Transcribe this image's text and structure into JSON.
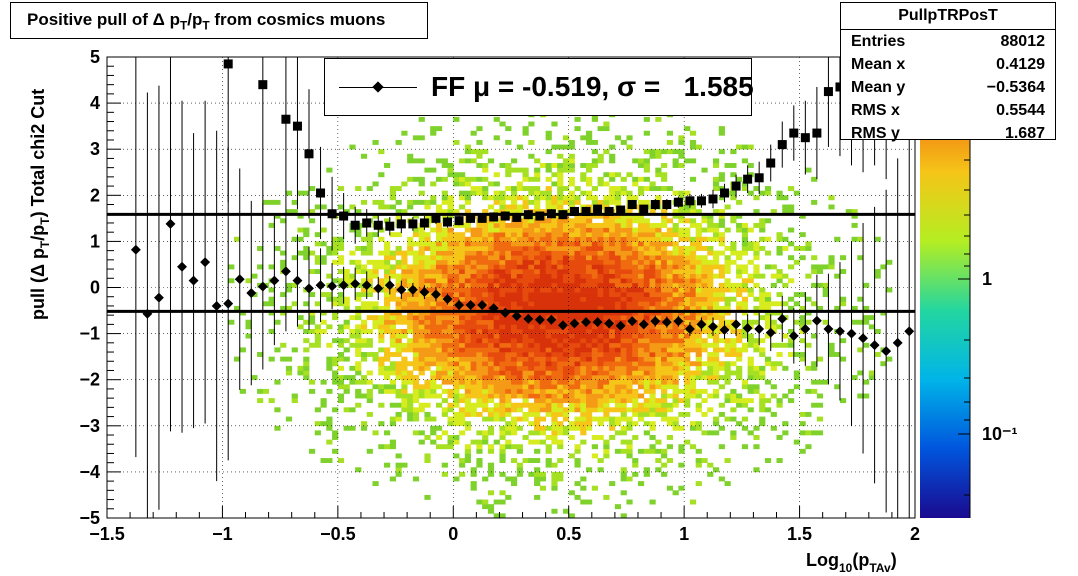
{
  "title": {
    "prefix": "Positive pull of Δ p",
    "sub1": "T",
    "mid": "/p",
    "sub2": "T",
    "suffix": " from cosmics muons"
  },
  "stats": {
    "name": "PullpTRPosT",
    "rows": [
      {
        "label": "Entries",
        "value": "88012"
      },
      {
        "label": "Mean x",
        "value": "0.4129"
      },
      {
        "label": "Mean y",
        "value": "−0.5364"
      },
      {
        "label": "RMS x",
        "value": "0.5544"
      },
      {
        "label": "RMS y",
        "value": "1.687"
      }
    ]
  },
  "legend": {
    "text": "FF μ = -0.519, σ =   1.585"
  },
  "colors": {
    "marker": "#000000",
    "fit_line": "#000000"
  },
  "chart_data": {
    "type": "scatter",
    "xlabel": "Log10(pTAv)",
    "ylabel": "pull (Δ pT/pT)  Total chi2 Cut",
    "xlim": [
      -1.5,
      2
    ],
    "ylim": [
      -5,
      5
    ],
    "x_ticks": [
      "−1.5",
      "−1",
      "−0.5",
      "0",
      "0.5",
      "1",
      "1.5",
      "2"
    ],
    "y_ticks": [
      "−5",
      "−4",
      "−3",
      "−2",
      "−1",
      "0",
      "1",
      "2",
      "3",
      "4",
      "5"
    ],
    "colorbar_ticks": [
      "1",
      "10⁻¹"
    ],
    "grid": true,
    "fit_lines": [
      -0.519,
      1.585
    ],
    "series": [
      {
        "marker": "diamond",
        "x": [
          -1.375,
          -1.325,
          -1.275,
          -1.225,
          -1.175,
          -1.125,
          -1.075,
          -1.025,
          -0.975,
          -0.925,
          -0.875,
          -0.825,
          -0.775,
          -0.725,
          -0.675,
          -0.625,
          -0.575,
          -0.525,
          -0.475,
          -0.425,
          -0.375,
          -0.325,
          -0.275,
          -0.225,
          -0.175,
          -0.125,
          -0.075,
          -0.025,
          0.025,
          0.075,
          0.125,
          0.175,
          0.225,
          0.275,
          0.325,
          0.375,
          0.425,
          0.475,
          0.525,
          0.575,
          0.625,
          0.675,
          0.725,
          0.775,
          0.825,
          0.875,
          0.925,
          0.975,
          1.025,
          1.075,
          1.125,
          1.175,
          1.225,
          1.275,
          1.325,
          1.375,
          1.425,
          1.475,
          1.525,
          1.575,
          1.625,
          1.675,
          1.725,
          1.775,
          1.825,
          1.875,
          1.925,
          1.975
        ],
        "y": [
          0.82,
          -0.57,
          -0.22,
          1.38,
          0.45,
          0.15,
          0.55,
          -0.4,
          -0.35,
          0.18,
          -0.12,
          0.02,
          0.15,
          0.35,
          0.15,
          -0.02,
          0.05,
          0.03,
          0.05,
          0.08,
          0.05,
          -0.02,
          0.05,
          -0.05,
          -0.05,
          -0.1,
          -0.15,
          -0.25,
          -0.38,
          -0.38,
          -0.38,
          -0.45,
          -0.55,
          -0.62,
          -0.68,
          -0.7,
          -0.7,
          -0.82,
          -0.78,
          -0.75,
          -0.75,
          -0.78,
          -0.83,
          -0.73,
          -0.8,
          -0.73,
          -0.75,
          -0.73,
          -0.9,
          -0.8,
          -0.85,
          -0.92,
          -0.8,
          -0.88,
          -0.9,
          -0.98,
          -0.68,
          -1.05,
          -0.9,
          -0.72,
          -0.9,
          -0.95,
          -1.0,
          -1.1,
          -1.25,
          -1.38,
          -1.2,
          -0.95
        ],
        "err": [
          4.5,
          4.8,
          4.6,
          4.5,
          3.6,
          3.2,
          3.5,
          3.8,
          3.4,
          2.4,
          2.0,
          1.8,
          1.4,
          1.3,
          1.0,
          0.9,
          0.8,
          0.5,
          0.4,
          0.35,
          0.3,
          0.25,
          0.2,
          0.2,
          0.15,
          0.15,
          0.15,
          0.12,
          0.12,
          0.1,
          0.1,
          0.1,
          0.1,
          0.1,
          0.1,
          0.1,
          0.1,
          0.1,
          0.1,
          0.1,
          0.1,
          0.1,
          0.1,
          0.1,
          0.1,
          0.12,
          0.12,
          0.12,
          0.15,
          0.15,
          0.2,
          0.2,
          0.25,
          0.3,
          0.35,
          0.4,
          0.5,
          0.6,
          0.8,
          1.0,
          1.2,
          1.5,
          2.0,
          2.5,
          3.0,
          3.5,
          4.0,
          4.2
        ]
      },
      {
        "marker": "square",
        "x": [
          -0.975,
          -0.825,
          -0.725,
          -0.675,
          -0.625,
          -0.575,
          -0.525,
          -0.475,
          -0.425,
          -0.375,
          -0.325,
          -0.275,
          -0.225,
          -0.175,
          -0.125,
          -0.075,
          -0.025,
          0.025,
          0.075,
          0.125,
          0.175,
          0.225,
          0.275,
          0.325,
          0.375,
          0.425,
          0.475,
          0.525,
          0.575,
          0.625,
          0.675,
          0.725,
          0.775,
          0.825,
          0.875,
          0.925,
          0.975,
          1.025,
          1.075,
          1.125,
          1.175,
          1.225,
          1.275,
          1.325,
          1.375,
          1.425,
          1.475,
          1.525,
          1.575,
          1.625,
          1.675,
          1.725,
          1.775,
          1.825,
          1.875
        ],
        "y": [
          4.85,
          4.4,
          3.65,
          3.5,
          2.9,
          2.05,
          1.6,
          1.55,
          1.35,
          1.4,
          1.35,
          1.33,
          1.38,
          1.38,
          1.4,
          1.5,
          1.42,
          1.45,
          1.5,
          1.5,
          1.53,
          1.55,
          1.52,
          1.58,
          1.55,
          1.6,
          1.58,
          1.65,
          1.65,
          1.7,
          1.65,
          1.68,
          1.8,
          1.7,
          1.8,
          1.8,
          1.85,
          1.88,
          1.88,
          1.92,
          2.05,
          2.2,
          2.35,
          2.38,
          2.7,
          3.1,
          3.35,
          3.25,
          3.35,
          4.25,
          4.35,
          4.45,
          4.5,
          4.85,
          4.85
        ],
        "err": [
          3.0,
          2.8,
          2.0,
          1.8,
          1.4,
          1.0,
          0.8,
          0.5,
          0.4,
          0.3,
          0.25,
          0.2,
          0.2,
          0.15,
          0.15,
          0.12,
          0.12,
          0.1,
          0.1,
          0.1,
          0.1,
          0.1,
          0.1,
          0.1,
          0.1,
          0.1,
          0.1,
          0.1,
          0.1,
          0.1,
          0.1,
          0.1,
          0.1,
          0.1,
          0.12,
          0.12,
          0.12,
          0.15,
          0.15,
          0.2,
          0.2,
          0.25,
          0.3,
          0.35,
          0.4,
          0.5,
          0.6,
          0.8,
          1.0,
          1.2,
          1.5,
          1.8,
          2.0,
          2.2,
          2.5
        ]
      }
    ]
  }
}
